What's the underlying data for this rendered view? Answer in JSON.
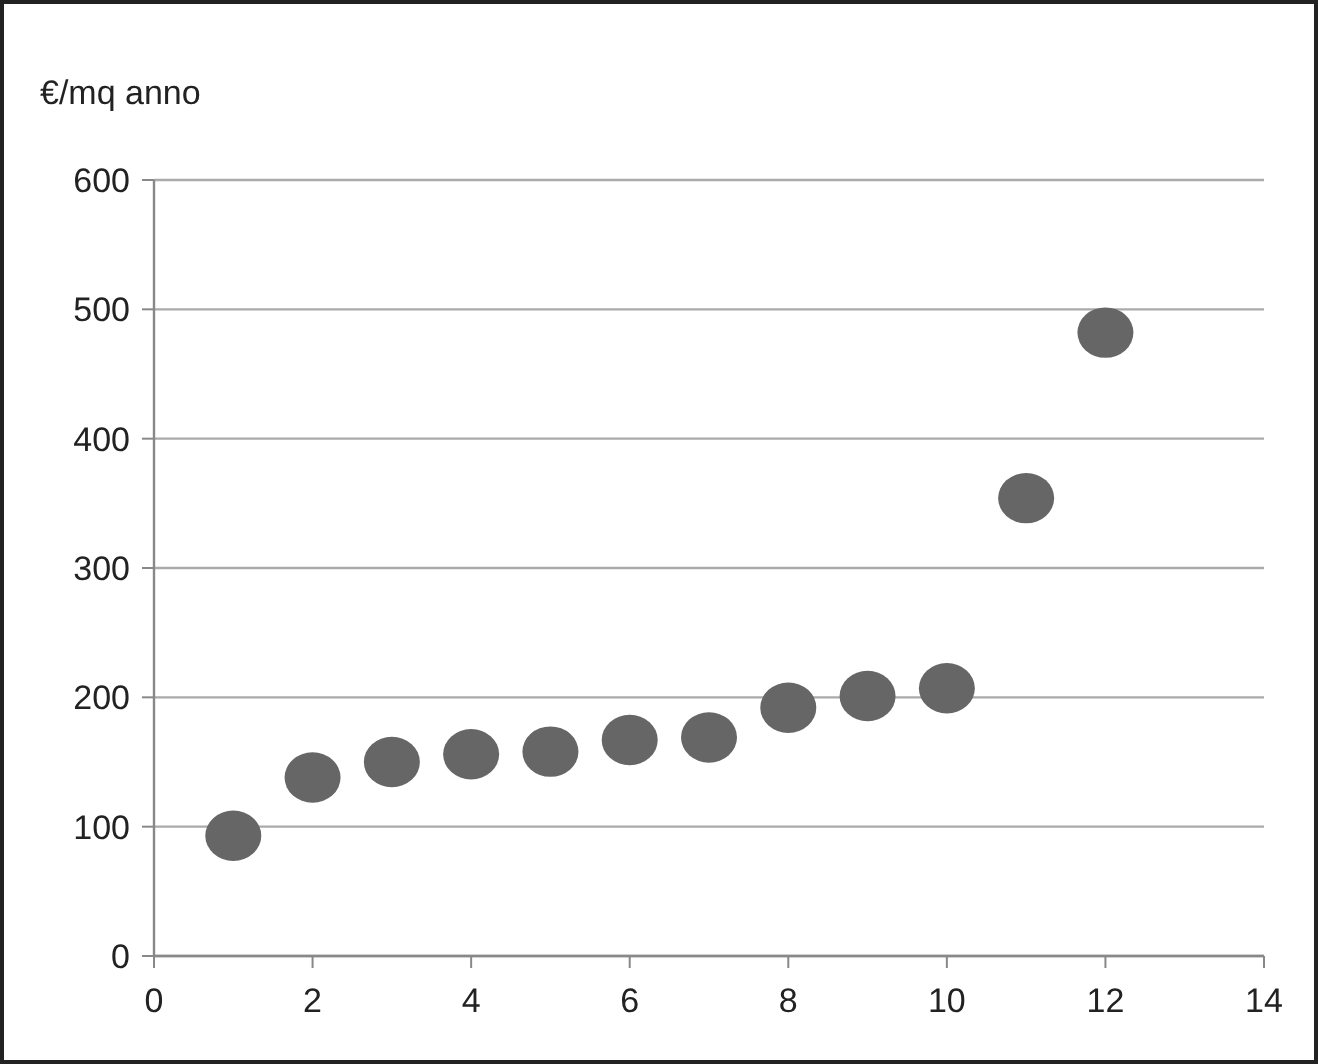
{
  "chart_data": {
    "type": "scatter",
    "ylabel": "€/mq anno",
    "x": [
      1,
      2,
      3,
      4,
      5,
      6,
      7,
      8,
      9,
      10,
      11,
      12
    ],
    "values": [
      93,
      138,
      150,
      156,
      158,
      167,
      169,
      192,
      201,
      207,
      354,
      482
    ],
    "color": "#666666",
    "marker": "circle",
    "xlim": [
      0,
      14
    ],
    "xticks": [
      0,
      2,
      4,
      6,
      8,
      10,
      12,
      14
    ],
    "ylim": [
      0,
      600
    ],
    "yticks": [
      0,
      100,
      200,
      300,
      400,
      500,
      600
    ],
    "grid": "y"
  }
}
